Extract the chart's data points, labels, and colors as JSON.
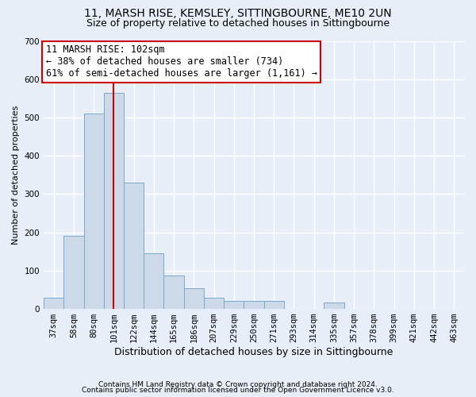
{
  "title1": "11, MARSH RISE, KEMSLEY, SITTINGBOURNE, ME10 2UN",
  "title2": "Size of property relative to detached houses in Sittingbourne",
  "xlabel": "Distribution of detached houses by size in Sittingbourne",
  "ylabel": "Number of detached properties",
  "footnote1": "Contains HM Land Registry data © Crown copyright and database right 2024.",
  "footnote2": "Contains public sector information licensed under the Open Government Licence v3.0.",
  "categories": [
    "37sqm",
    "58sqm",
    "80sqm",
    "101sqm",
    "122sqm",
    "144sqm",
    "165sqm",
    "186sqm",
    "207sqm",
    "229sqm",
    "250sqm",
    "271sqm",
    "293sqm",
    "314sqm",
    "335sqm",
    "357sqm",
    "378sqm",
    "399sqm",
    "421sqm",
    "442sqm",
    "463sqm"
  ],
  "values": [
    30,
    190,
    510,
    565,
    330,
    145,
    88,
    55,
    30,
    20,
    20,
    20,
    0,
    0,
    17,
    0,
    0,
    0,
    0,
    0,
    0
  ],
  "bar_color": "#ccd9e8",
  "bar_edge_color": "#7aaac8",
  "vline_index": 3,
  "vline_color": "#cc0000",
  "annotation_text": "11 MARSH RISE: 102sqm\n← 38% of detached houses are smaller (734)\n61% of semi-detached houses are larger (1,161) →",
  "annotation_box_facecolor": "#ffffff",
  "annotation_box_edgecolor": "#cc0000",
  "annotation_fontsize": 8.5,
  "bg_color": "#e8eef8",
  "plot_bg_color": "#e8eef8",
  "grid_color": "#ffffff",
  "ylim": [
    0,
    700
  ],
  "yticks": [
    0,
    100,
    200,
    300,
    400,
    500,
    600,
    700
  ],
  "title1_fontsize": 10,
  "title2_fontsize": 9,
  "ylabel_fontsize": 8,
  "xlabel_fontsize": 9,
  "tick_fontsize": 7.5,
  "footnote_fontsize": 6.5
}
